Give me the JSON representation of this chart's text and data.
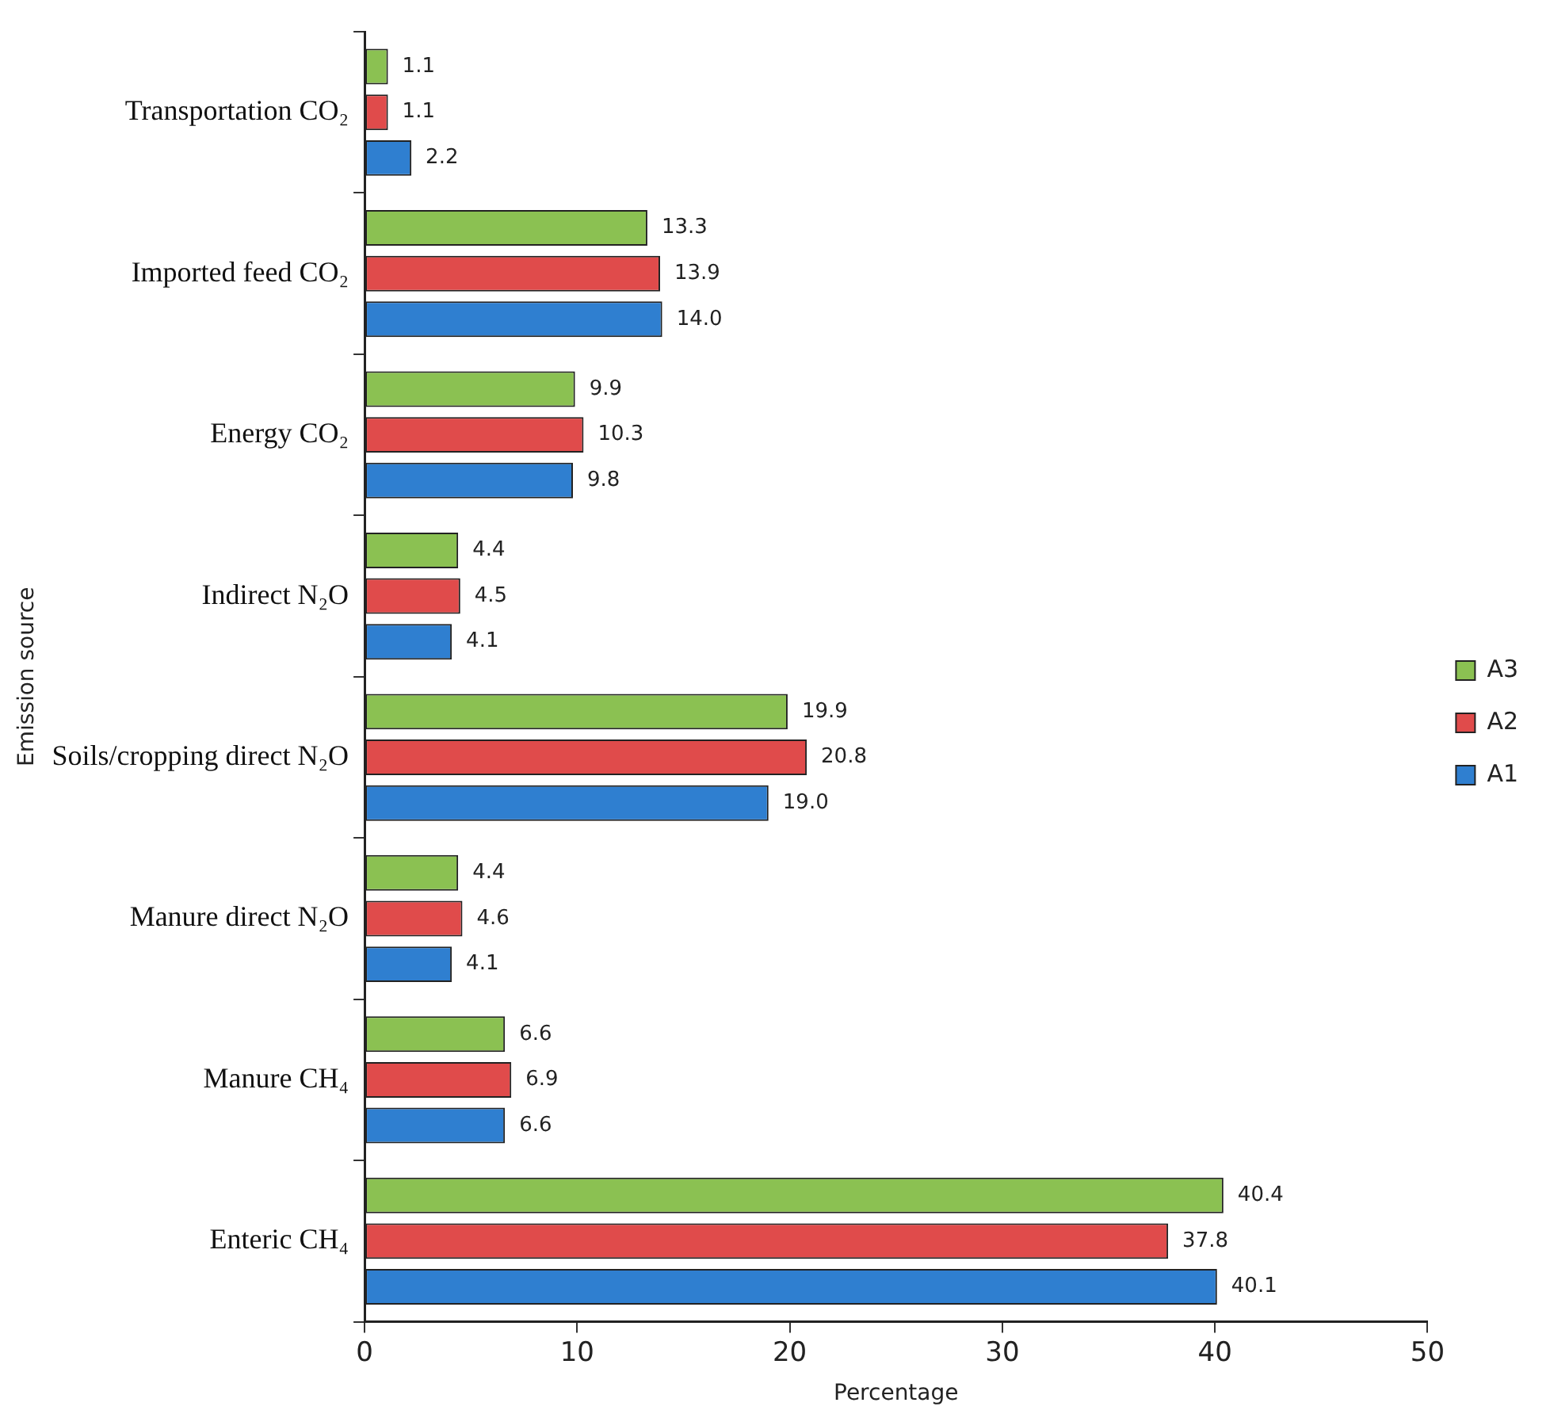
{
  "chart_data": {
    "type": "bar",
    "orientation": "horizontal",
    "xlabel": "Percentage",
    "ylabel": "Emission source",
    "categories": [
      "Transportation CO₂",
      "Imported feed CO₂",
      "Energy CO₂",
      "Indirect N₂O",
      "Soils/cropping direct N₂O",
      "Manure direct N₂O",
      "Manure CH₄",
      "Enteric CH₄"
    ],
    "series": [
      {
        "name": "A3",
        "color": "#8bc152",
        "values": [
          1.1,
          13.3,
          9.9,
          4.4,
          19.9,
          4.4,
          6.6,
          40.4
        ],
        "value_labels": [
          "1.1",
          "13.3",
          "9.9",
          "4.4",
          "19.9",
          "4.4",
          "6.6",
          "40.4"
        ]
      },
      {
        "name": "A2",
        "color": "#e04b4b",
        "values": [
          1.1,
          13.9,
          10.3,
          4.5,
          20.8,
          4.6,
          6.9,
          37.8
        ],
        "value_labels": [
          "1.1",
          "13.9",
          "10.3",
          "4.5",
          "20.8",
          "4.6",
          "6.9",
          "37.8"
        ]
      },
      {
        "name": "A1",
        "color": "#2f7fd0",
        "values": [
          2.2,
          14,
          9.8,
          4.1,
          19,
          4.1,
          6.6,
          40.1
        ],
        "value_labels": [
          "2.2",
          "14.0",
          "9.8",
          "4.1",
          "19.0",
          "4.1",
          "6.6",
          "40.1"
        ]
      }
    ],
    "xlim": [
      0,
      50
    ],
    "xticks": [
      0,
      10,
      20,
      30,
      40,
      50
    ],
    "grid": false,
    "legend": "right"
  }
}
